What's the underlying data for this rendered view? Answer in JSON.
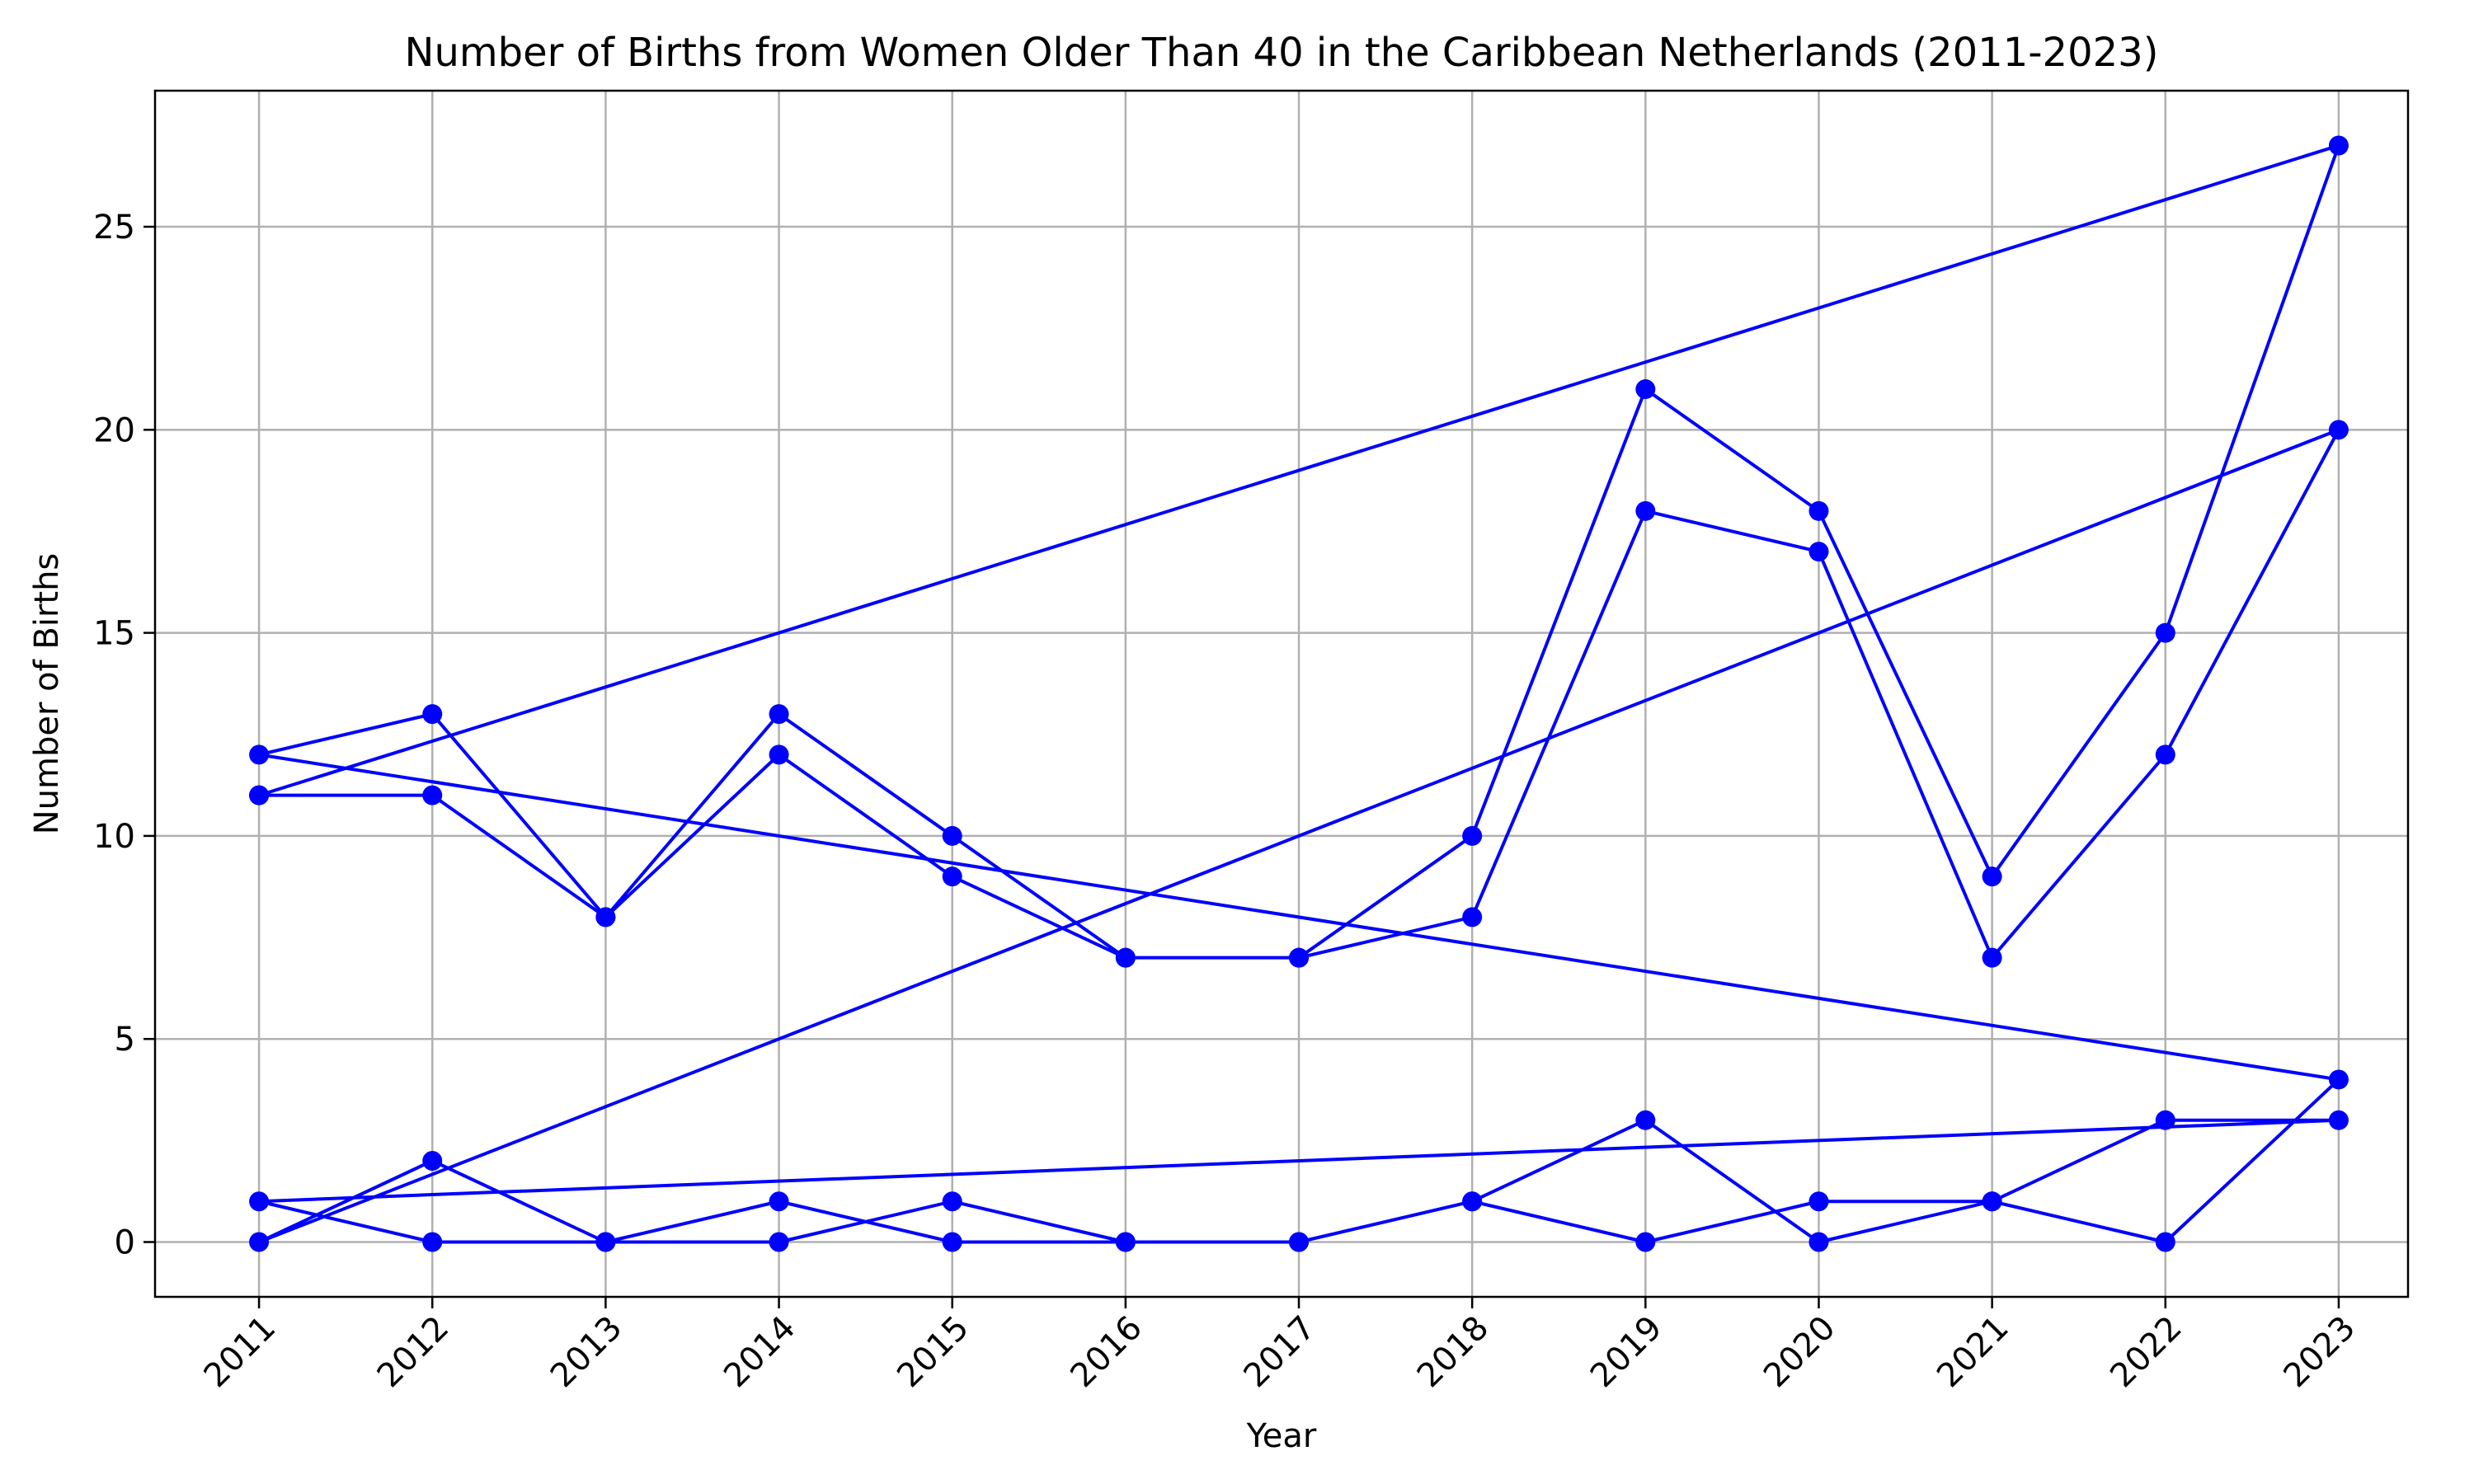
{
  "chart_data": {
    "type": "line",
    "title": "Number of Births from Women Older Than 40 in the Caribbean Netherlands (2011-2023)",
    "xlabel": "Year",
    "ylabel": "Number of Births",
    "x_ticks": [
      "2011",
      "2012",
      "2013",
      "2014",
      "2015",
      "2016",
      "2017",
      "2018",
      "2019",
      "2020",
      "2021",
      "2022",
      "2023"
    ],
    "y_ticks": [
      0,
      5,
      10,
      15,
      20,
      25
    ],
    "xlim": [
      2010.4,
      2023.4
    ],
    "ylim": [
      -1.35,
      28.35
    ],
    "grid": true,
    "color": "#0000ff",
    "marker": "circle",
    "points": [
      {
        "x": 2011,
        "y": 11
      },
      {
        "x": 2012,
        "y": 11
      },
      {
        "x": 2013,
        "y": 8
      },
      {
        "x": 2014,
        "y": 12
      },
      {
        "x": 2015,
        "y": 9
      },
      {
        "x": 2016,
        "y": 7
      },
      {
        "x": 2017,
        "y": 7
      },
      {
        "x": 2018,
        "y": 8
      },
      {
        "x": 2019,
        "y": 18
      },
      {
        "x": 2020,
        "y": 17
      },
      {
        "x": 2021,
        "y": 7
      },
      {
        "x": 2022,
        "y": 12
      },
      {
        "x": 2023,
        "y": 20
      },
      {
        "x": 2011,
        "y": 0
      },
      {
        "x": 2012,
        "y": 2
      },
      {
        "x": 2013,
        "y": 0
      },
      {
        "x": 2014,
        "y": 0
      },
      {
        "x": 2015,
        "y": 1
      },
      {
        "x": 2016,
        "y": 0
      },
      {
        "x": 2017,
        "y": 0
      },
      {
        "x": 2018,
        "y": 1
      },
      {
        "x": 2019,
        "y": 0
      },
      {
        "x": 2020,
        "y": 1
      },
      {
        "x": 2021,
        "y": 1
      },
      {
        "x": 2022,
        "y": 3
      },
      {
        "x": 2023,
        "y": 3
      },
      {
        "x": 2011,
        "y": 1
      },
      {
        "x": 2012,
        "y": 0
      },
      {
        "x": 2013,
        "y": 0
      },
      {
        "x": 2014,
        "y": 1
      },
      {
        "x": 2015,
        "y": 0
      },
      {
        "x": 2016,
        "y": 0
      },
      {
        "x": 2017,
        "y": 0
      },
      {
        "x": 2018,
        "y": 1
      },
      {
        "x": 2019,
        "y": 3
      },
      {
        "x": 2020,
        "y": 0
      },
      {
        "x": 2021,
        "y": 1
      },
      {
        "x": 2022,
        "y": 0
      },
      {
        "x": 2023,
        "y": 4
      },
      {
        "x": 2011,
        "y": 12
      },
      {
        "x": 2012,
        "y": 13
      },
      {
        "x": 2013,
        "y": 8
      },
      {
        "x": 2014,
        "y": 13
      },
      {
        "x": 2015,
        "y": 10
      },
      {
        "x": 2016,
        "y": 7
      },
      {
        "x": 2017,
        "y": 7
      },
      {
        "x": 2018,
        "y": 10
      },
      {
        "x": 2019,
        "y": 21
      },
      {
        "x": 2020,
        "y": 18
      },
      {
        "x": 2021,
        "y": 9
      },
      {
        "x": 2022,
        "y": 15
      },
      {
        "x": 2023,
        "y": 27
      },
      {
        "x": 2011,
        "y": 11
      }
    ]
  }
}
